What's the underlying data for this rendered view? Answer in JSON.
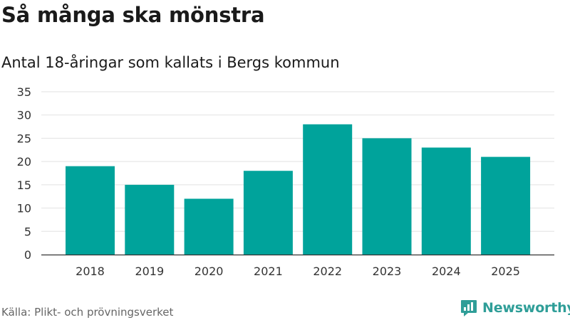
{
  "title": "Så många ska mönstra",
  "subtitle": "Antal 18-åringar som kallats i Bergs kommun",
  "source": "Källa: Plikt- och prövningsverket",
  "brand": {
    "name": "Newsworthy",
    "color": "#2f9e98",
    "icon": "newsworthy-logo-icon"
  },
  "chart_data": {
    "type": "bar",
    "categories": [
      "2018",
      "2019",
      "2020",
      "2021",
      "2022",
      "2023",
      "2024",
      "2025"
    ],
    "values": [
      19,
      15,
      12,
      18,
      28,
      25,
      23,
      21
    ],
    "ylim": [
      0,
      35
    ],
    "yticks": [
      0,
      5,
      10,
      15,
      20,
      25,
      30,
      35
    ],
    "grid": true,
    "bar_color": "#00a39b",
    "legend": "none"
  }
}
